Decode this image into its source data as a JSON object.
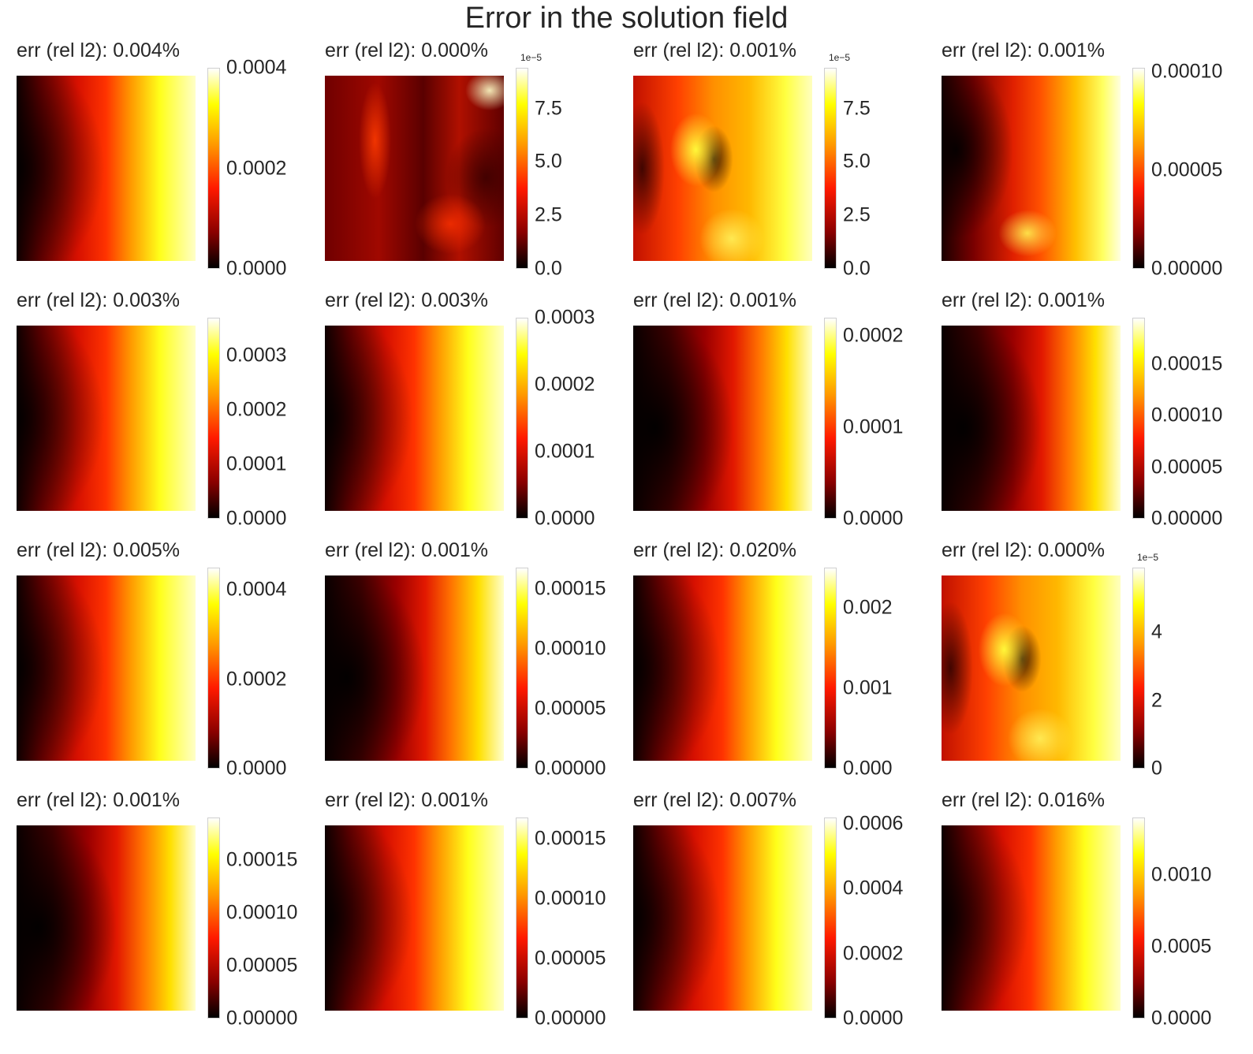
{
  "title": "Error in the solution field",
  "chart_data": [
    {
      "type": "heatmap",
      "title": "err (rel l2): 0.004%",
      "pattern": "gradient-right",
      "colormap": "hot",
      "clim": [
        0,
        0.0004
      ],
      "offset_text": "",
      "ticks": [
        {
          "label": "0.0000",
          "value": 0
        },
        {
          "label": "0.0002",
          "value": 0.0002
        },
        {
          "label": "0.0004",
          "value": 0.0004
        }
      ]
    },
    {
      "type": "heatmap",
      "title": "err (rel l2): 0.000%",
      "pattern": "patchy-dark",
      "colormap": "hot",
      "clim": [
        0,
        9.4
      ],
      "offset_text": "1e−5",
      "ticks": [
        {
          "label": "0.0",
          "value": 0
        },
        {
          "label": "2.5",
          "value": 2.5
        },
        {
          "label": "5.0",
          "value": 5.0
        },
        {
          "label": "7.5",
          "value": 7.5
        }
      ]
    },
    {
      "type": "heatmap",
      "title": "err (rel l2): 0.001%",
      "pattern": "patchy-bright",
      "colormap": "hot",
      "clim": [
        0,
        9.4
      ],
      "offset_text": "1e−5",
      "ticks": [
        {
          "label": "0.0",
          "value": 0
        },
        {
          "label": "2.5",
          "value": 2.5
        },
        {
          "label": "5.0",
          "value": 5.0
        },
        {
          "label": "7.5",
          "value": 7.5
        }
      ]
    },
    {
      "type": "heatmap",
      "title": "err (rel l2): 0.001%",
      "pattern": "gradient-right-patchy",
      "colormap": "hot",
      "clim": [
        0,
        0.000102
      ],
      "offset_text": "",
      "ticks": [
        {
          "label": "0.00000",
          "value": 0
        },
        {
          "label": "0.00005",
          "value": 5e-05
        },
        {
          "label": "0.00010",
          "value": 0.0001
        }
      ]
    },
    {
      "type": "heatmap",
      "title": "err (rel l2): 0.003%",
      "pattern": "gradient-right",
      "colormap": "hot",
      "clim": [
        0,
        0.00037
      ],
      "offset_text": "",
      "ticks": [
        {
          "label": "0.0000",
          "value": 0
        },
        {
          "label": "0.0001",
          "value": 0.0001
        },
        {
          "label": "0.0002",
          "value": 0.0002
        },
        {
          "label": "0.0003",
          "value": 0.0003
        }
      ]
    },
    {
      "type": "heatmap",
      "title": "err (rel l2): 0.003%",
      "pattern": "gradient-right",
      "colormap": "hot",
      "clim": [
        0,
        0.0003
      ],
      "offset_text": "",
      "ticks": [
        {
          "label": "0.0000",
          "value": 0
        },
        {
          "label": "0.0001",
          "value": 0.0001
        },
        {
          "label": "0.0002",
          "value": 0.0002
        },
        {
          "label": "0.0003",
          "value": 0.0003
        }
      ]
    },
    {
      "type": "heatmap",
      "title": "err (rel l2): 0.001%",
      "pattern": "gradient-right-dark",
      "colormap": "hot",
      "clim": [
        0,
        0.00022
      ],
      "offset_text": "",
      "ticks": [
        {
          "label": "0.0000",
          "value": 0
        },
        {
          "label": "0.0001",
          "value": 0.0001
        },
        {
          "label": "0.0002",
          "value": 0.0002
        }
      ]
    },
    {
      "type": "heatmap",
      "title": "err (rel l2): 0.001%",
      "pattern": "gradient-right-dark",
      "colormap": "hot",
      "clim": [
        0,
        0.000195
      ],
      "offset_text": "",
      "ticks": [
        {
          "label": "0.00000",
          "value": 0
        },
        {
          "label": "0.00005",
          "value": 5e-05
        },
        {
          "label": "0.00010",
          "value": 0.0001
        },
        {
          "label": "0.00015",
          "value": 0.00015
        }
      ]
    },
    {
      "type": "heatmap",
      "title": "err (rel l2): 0.005%",
      "pattern": "gradient-right",
      "colormap": "hot",
      "clim": [
        0,
        0.00045
      ],
      "offset_text": "",
      "ticks": [
        {
          "label": "0.0000",
          "value": 0
        },
        {
          "label": "0.0002",
          "value": 0.0002
        },
        {
          "label": "0.0004",
          "value": 0.0004
        }
      ]
    },
    {
      "type": "heatmap",
      "title": "err (rel l2): 0.001%",
      "pattern": "gradient-right-dark",
      "colormap": "hot",
      "clim": [
        0,
        0.000168
      ],
      "offset_text": "",
      "ticks": [
        {
          "label": "0.00000",
          "value": 0
        },
        {
          "label": "0.00005",
          "value": 5e-05
        },
        {
          "label": "0.00010",
          "value": 0.0001
        },
        {
          "label": "0.00015",
          "value": 0.00015
        }
      ]
    },
    {
      "type": "heatmap",
      "title": "err (rel l2): 0.020%",
      "pattern": "gradient-right",
      "colormap": "hot",
      "clim": [
        0,
        0.0025
      ],
      "offset_text": "",
      "ticks": [
        {
          "label": "0.000",
          "value": 0
        },
        {
          "label": "0.001",
          "value": 0.001
        },
        {
          "label": "0.002",
          "value": 0.002
        }
      ]
    },
    {
      "type": "heatmap",
      "title": "err (rel l2): 0.000%",
      "pattern": "patchy-bright",
      "colormap": "hot",
      "clim": [
        0,
        5.9
      ],
      "offset_text": "1e−5",
      "ticks": [
        {
          "label": "0",
          "value": 0
        },
        {
          "label": "2",
          "value": 2
        },
        {
          "label": "4",
          "value": 4
        }
      ]
    },
    {
      "type": "heatmap",
      "title": "err (rel l2): 0.001%",
      "pattern": "gradient-right-dark",
      "colormap": "hot",
      "clim": [
        0,
        0.00019
      ],
      "offset_text": "",
      "ticks": [
        {
          "label": "0.00000",
          "value": 0
        },
        {
          "label": "0.00005",
          "value": 5e-05
        },
        {
          "label": "0.00010",
          "value": 0.0001
        },
        {
          "label": "0.00015",
          "value": 0.00015
        }
      ]
    },
    {
      "type": "heatmap",
      "title": "err (rel l2): 0.001%",
      "pattern": "gradient-right",
      "colormap": "hot",
      "clim": [
        0,
        0.000168
      ],
      "offset_text": "",
      "ticks": [
        {
          "label": "0.00000",
          "value": 0
        },
        {
          "label": "0.00005",
          "value": 5e-05
        },
        {
          "label": "0.00010",
          "value": 0.0001
        },
        {
          "label": "0.00015",
          "value": 0.00015
        }
      ]
    },
    {
      "type": "heatmap",
      "title": "err (rel l2): 0.007%",
      "pattern": "gradient-right",
      "colormap": "hot",
      "clim": [
        0,
        0.00062
      ],
      "offset_text": "",
      "ticks": [
        {
          "label": "0.0000",
          "value": 0
        },
        {
          "label": "0.0002",
          "value": 0.0002
        },
        {
          "label": "0.0004",
          "value": 0.0004
        },
        {
          "label": "0.0006",
          "value": 0.0006
        }
      ]
    },
    {
      "type": "heatmap",
      "title": "err (rel l2): 0.016%",
      "pattern": "gradient-right",
      "colormap": "hot",
      "clim": [
        0,
        0.0014
      ],
      "offset_text": "",
      "ticks": [
        {
          "label": "0.0000",
          "value": 0
        },
        {
          "label": "0.0005",
          "value": 0.0005
        },
        {
          "label": "0.0010",
          "value": 0.001
        }
      ]
    }
  ]
}
